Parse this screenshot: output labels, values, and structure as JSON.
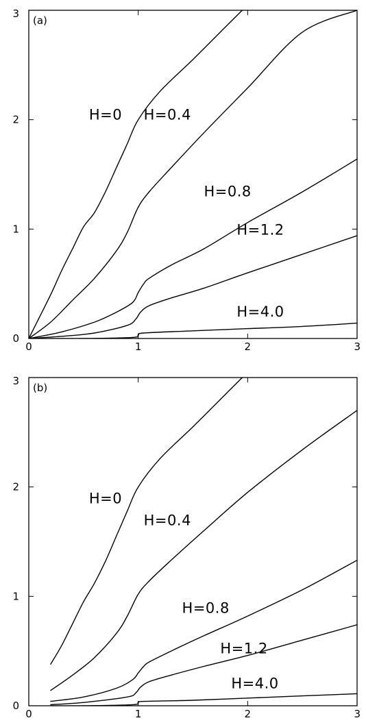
{
  "chart_data": [
    {
      "type": "line",
      "panel_label": "(a)",
      "xlabel": "",
      "ylabel": "",
      "xlim": [
        0,
        3
      ],
      "ylim": [
        0,
        3
      ],
      "xticks": [
        "0",
        "1",
        "2",
        "3"
      ],
      "yticks": [
        "0",
        "1",
        "2",
        "3"
      ],
      "series": [
        {
          "name": "H=0",
          "x": [
            0,
            0.1,
            0.2,
            0.3,
            0.4,
            0.5,
            0.6,
            0.7,
            0.8,
            0.9,
            1.0,
            1.2,
            1.5,
            1.8,
            1.95
          ],
          "y": [
            0,
            0.2,
            0.4,
            0.62,
            0.82,
            1.02,
            1.15,
            1.34,
            1.56,
            1.78,
            2.0,
            2.26,
            2.55,
            2.85,
            3.0
          ]
        },
        {
          "name": "H=0.4",
          "x": [
            0,
            0.2,
            0.4,
            0.6,
            0.8,
            0.9,
            1.0,
            1.1,
            1.3,
            1.6,
            2.0,
            2.5,
            3.0
          ],
          "y": [
            0,
            0.15,
            0.35,
            0.55,
            0.8,
            0.97,
            1.2,
            1.34,
            1.56,
            1.88,
            2.29,
            2.8,
            3.0
          ]
        },
        {
          "name": "H=0.8",
          "x": [
            0,
            0.3,
            0.6,
            0.8,
            0.95,
            1.0,
            1.05,
            1.1,
            1.3,
            1.6,
            2.0,
            2.5,
            3.0
          ],
          "y": [
            0,
            0.06,
            0.15,
            0.24,
            0.33,
            0.42,
            0.5,
            0.55,
            0.67,
            0.82,
            1.06,
            1.34,
            1.64
          ]
        },
        {
          "name": "H=1.2",
          "x": [
            0,
            0.3,
            0.6,
            0.9,
            0.98,
            1.02,
            1.1,
            1.3,
            1.6,
            2.0,
            2.5,
            3.0
          ],
          "y": [
            0,
            0.02,
            0.05,
            0.12,
            0.18,
            0.24,
            0.3,
            0.37,
            0.46,
            0.6,
            0.77,
            0.94
          ]
        },
        {
          "name": "H=4.0",
          "x": [
            0,
            0.5,
            0.95,
            1.0,
            1.05,
            1.5,
            2.0,
            2.5,
            3.0
          ],
          "y": [
            0,
            0.0,
            0.01,
            0.03,
            0.05,
            0.07,
            0.09,
            0.11,
            0.14
          ]
        }
      ],
      "labels": [
        {
          "text": "H=0",
          "x": 0.55,
          "y": 2.0
        },
        {
          "text": "H=0.4",
          "x": 1.05,
          "y": 2.0
        },
        {
          "text": "H=0.8",
          "x": 1.6,
          "y": 1.3
        },
        {
          "text": "H=1.2",
          "x": 1.9,
          "y": 0.95
        },
        {
          "text": "H=4.0",
          "x": 1.9,
          "y": 0.2
        }
      ]
    },
    {
      "type": "line",
      "panel_label": "(b)",
      "xlabel": "",
      "ylabel": "",
      "xlim": [
        0,
        3
      ],
      "ylim": [
        0,
        3
      ],
      "xticks": [
        "0",
        "1",
        "2",
        "3"
      ],
      "yticks": [
        "0",
        "1",
        "2",
        "3"
      ],
      "series": [
        {
          "name": "H=0",
          "x": [
            0.2,
            0.3,
            0.4,
            0.5,
            0.6,
            0.7,
            0.8,
            0.9,
            1.0,
            1.2,
            1.5,
            1.8,
            1.95
          ],
          "y": [
            0.38,
            0.55,
            0.75,
            0.95,
            1.12,
            1.32,
            1.55,
            1.78,
            2.0,
            2.26,
            2.55,
            2.85,
            3.0
          ]
        },
        {
          "name": "H=0.4",
          "x": [
            0.2,
            0.4,
            0.6,
            0.8,
            0.9,
            1.0,
            1.1,
            1.3,
            1.6,
            2.0,
            2.5,
            3.0
          ],
          "y": [
            0.14,
            0.28,
            0.44,
            0.66,
            0.82,
            1.02,
            1.14,
            1.33,
            1.6,
            1.95,
            2.34,
            2.7
          ]
        },
        {
          "name": "H=0.8",
          "x": [
            0.2,
            0.5,
            0.8,
            0.95,
            1.0,
            1.05,
            1.1,
            1.3,
            1.6,
            2.0,
            2.5,
            3.0
          ],
          "y": [
            0.04,
            0.08,
            0.16,
            0.24,
            0.3,
            0.36,
            0.4,
            0.5,
            0.64,
            0.82,
            1.06,
            1.33
          ]
        },
        {
          "name": "H=1.2",
          "x": [
            0.2,
            0.5,
            0.9,
            0.98,
            1.02,
            1.1,
            1.3,
            1.6,
            2.0,
            2.5,
            3.0
          ],
          "y": [
            0.01,
            0.03,
            0.08,
            0.12,
            0.17,
            0.22,
            0.28,
            0.36,
            0.46,
            0.6,
            0.74
          ]
        },
        {
          "name": "H=4.0",
          "x": [
            0.2,
            0.5,
            0.95,
            1.0,
            1.05,
            1.5,
            2.0,
            2.5,
            3.0
          ],
          "y": [
            0.0,
            0.0,
            0.01,
            0.03,
            0.04,
            0.05,
            0.07,
            0.09,
            0.11
          ]
        }
      ],
      "labels": [
        {
          "text": "H=0",
          "x": 0.55,
          "y": 1.85
        },
        {
          "text": "H=0.4",
          "x": 1.05,
          "y": 1.65
        },
        {
          "text": "H=0.8",
          "x": 1.4,
          "y": 0.85
        },
        {
          "text": "H=1.2",
          "x": 1.75,
          "y": 0.48
        },
        {
          "text": "H=4.0",
          "x": 1.85,
          "y": 0.16
        }
      ]
    }
  ]
}
